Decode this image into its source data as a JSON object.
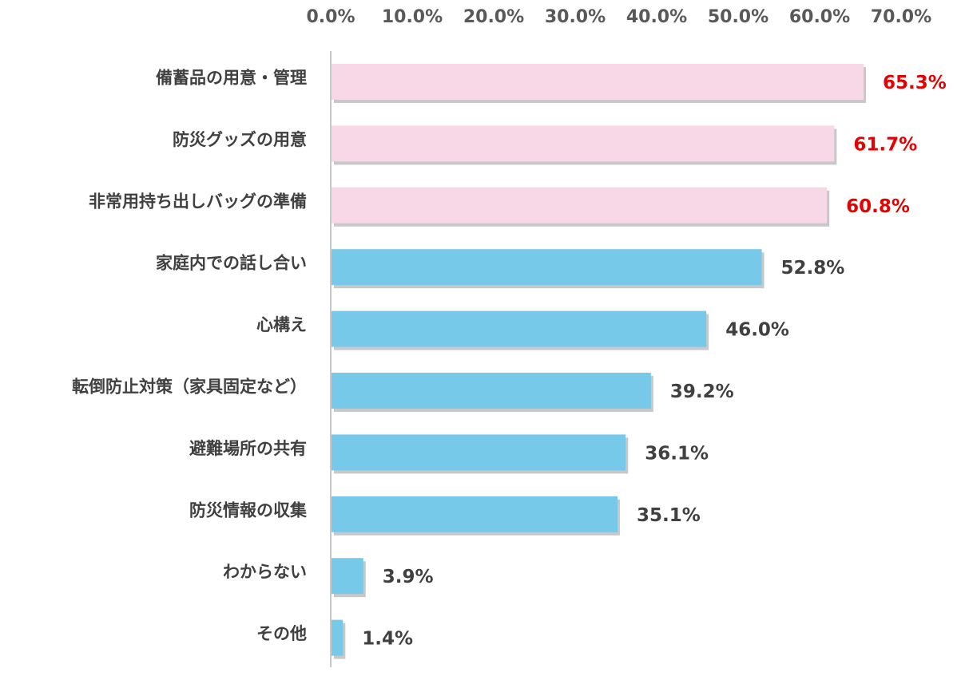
{
  "chart_data": {
    "type": "bar",
    "orientation": "horizontal",
    "title": "",
    "xlabel": "",
    "ylabel": "",
    "xlim": [
      0,
      70
    ],
    "tick_values": [
      0,
      10,
      20,
      30,
      40,
      50,
      60,
      70
    ],
    "tick_labels": [
      "0.0%",
      "10.0%",
      "20.0%",
      "30.0%",
      "40.0%",
      "50.0%",
      "60.0%",
      "70.0%"
    ],
    "axis_position": "top",
    "grid": false,
    "categories": [
      "備蓄品の用意・管理",
      "防災グッズの用意",
      "非常用持ち出しバッグの準備",
      "家庭内での話し合い",
      "心構え",
      "転倒防止対策（家具固定など）",
      "避難場所の共有",
      "防災情報の収集",
      "わからない",
      "その他"
    ],
    "values": [
      65.3,
      61.7,
      60.8,
      52.8,
      46.0,
      39.2,
      36.1,
      35.1,
      3.9,
      1.4
    ],
    "data_labels": [
      "65.3%",
      "61.7%",
      "60.8%",
      "52.8%",
      "46.0%",
      "39.2%",
      "36.1%",
      "35.1%",
      "3.9%",
      "1.4%"
    ],
    "highlighted_top_n": 3,
    "colors": {
      "highlight_bar": "#f8d7e6",
      "normal_bar": "#77c9e9",
      "highlight_label": "#e60000",
      "normal_label": "#404040",
      "axis_line": "#c8c8c8",
      "shadow": "#9a9a9a"
    }
  }
}
